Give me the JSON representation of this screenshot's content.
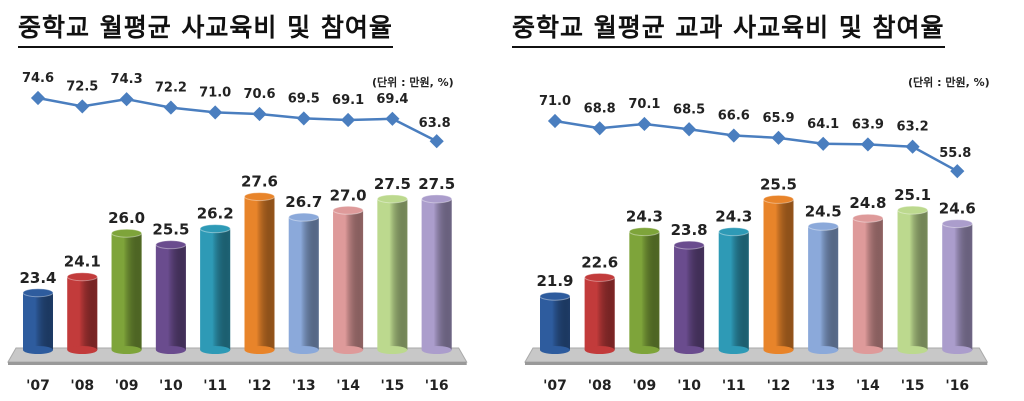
{
  "chart_data": [
    {
      "type": "bar+line",
      "title": "중학교 월평균 사교육비 및 참여율",
      "unit_note": "(단위 : 만원, %)",
      "categories": [
        "'07",
        "'08",
        "'09",
        "'10",
        "'11",
        "'12",
        "'13",
        "'14",
        "'15",
        "'16"
      ],
      "bar_values": [
        23.4,
        24.1,
        26.0,
        25.5,
        26.2,
        27.6,
        26.7,
        27.0,
        27.5,
        27.5
      ],
      "line_values": [
        74.6,
        72.5,
        74.3,
        72.2,
        71.0,
        70.6,
        69.5,
        69.1,
        69.4,
        63.8
      ],
      "bar_colors": [
        "#2e5c9e",
        "#c23b3b",
        "#7ea43a",
        "#6a4c8e",
        "#2e9ab6",
        "#e8842a",
        "#8ba9da",
        "#de9a9a",
        "#bcd98e",
        "#ab9dcc"
      ],
      "line_color": "#4a7ebf"
    },
    {
      "type": "bar+line",
      "title": "중학교 월평균 교과 사교육비 및 참여율",
      "unit_note": "(단위 : 만원, %)",
      "categories": [
        "'07",
        "'08",
        "'09",
        "'10",
        "'11",
        "'12",
        "'13",
        "'14",
        "'15",
        "'16"
      ],
      "bar_values": [
        21.9,
        22.6,
        24.3,
        23.8,
        24.3,
        25.5,
        24.5,
        24.8,
        25.1,
        24.6
      ],
      "line_values": [
        71.0,
        68.8,
        70.1,
        68.5,
        66.6,
        65.9,
        64.1,
        63.9,
        63.2,
        55.8
      ],
      "bar_colors": [
        "#2e5c9e",
        "#c23b3b",
        "#7ea43a",
        "#6a4c8e",
        "#2e9ab6",
        "#e8842a",
        "#8ba9da",
        "#de9a9a",
        "#bcd98e",
        "#ab9dcc"
      ],
      "line_color": "#4a7ebf"
    }
  ]
}
